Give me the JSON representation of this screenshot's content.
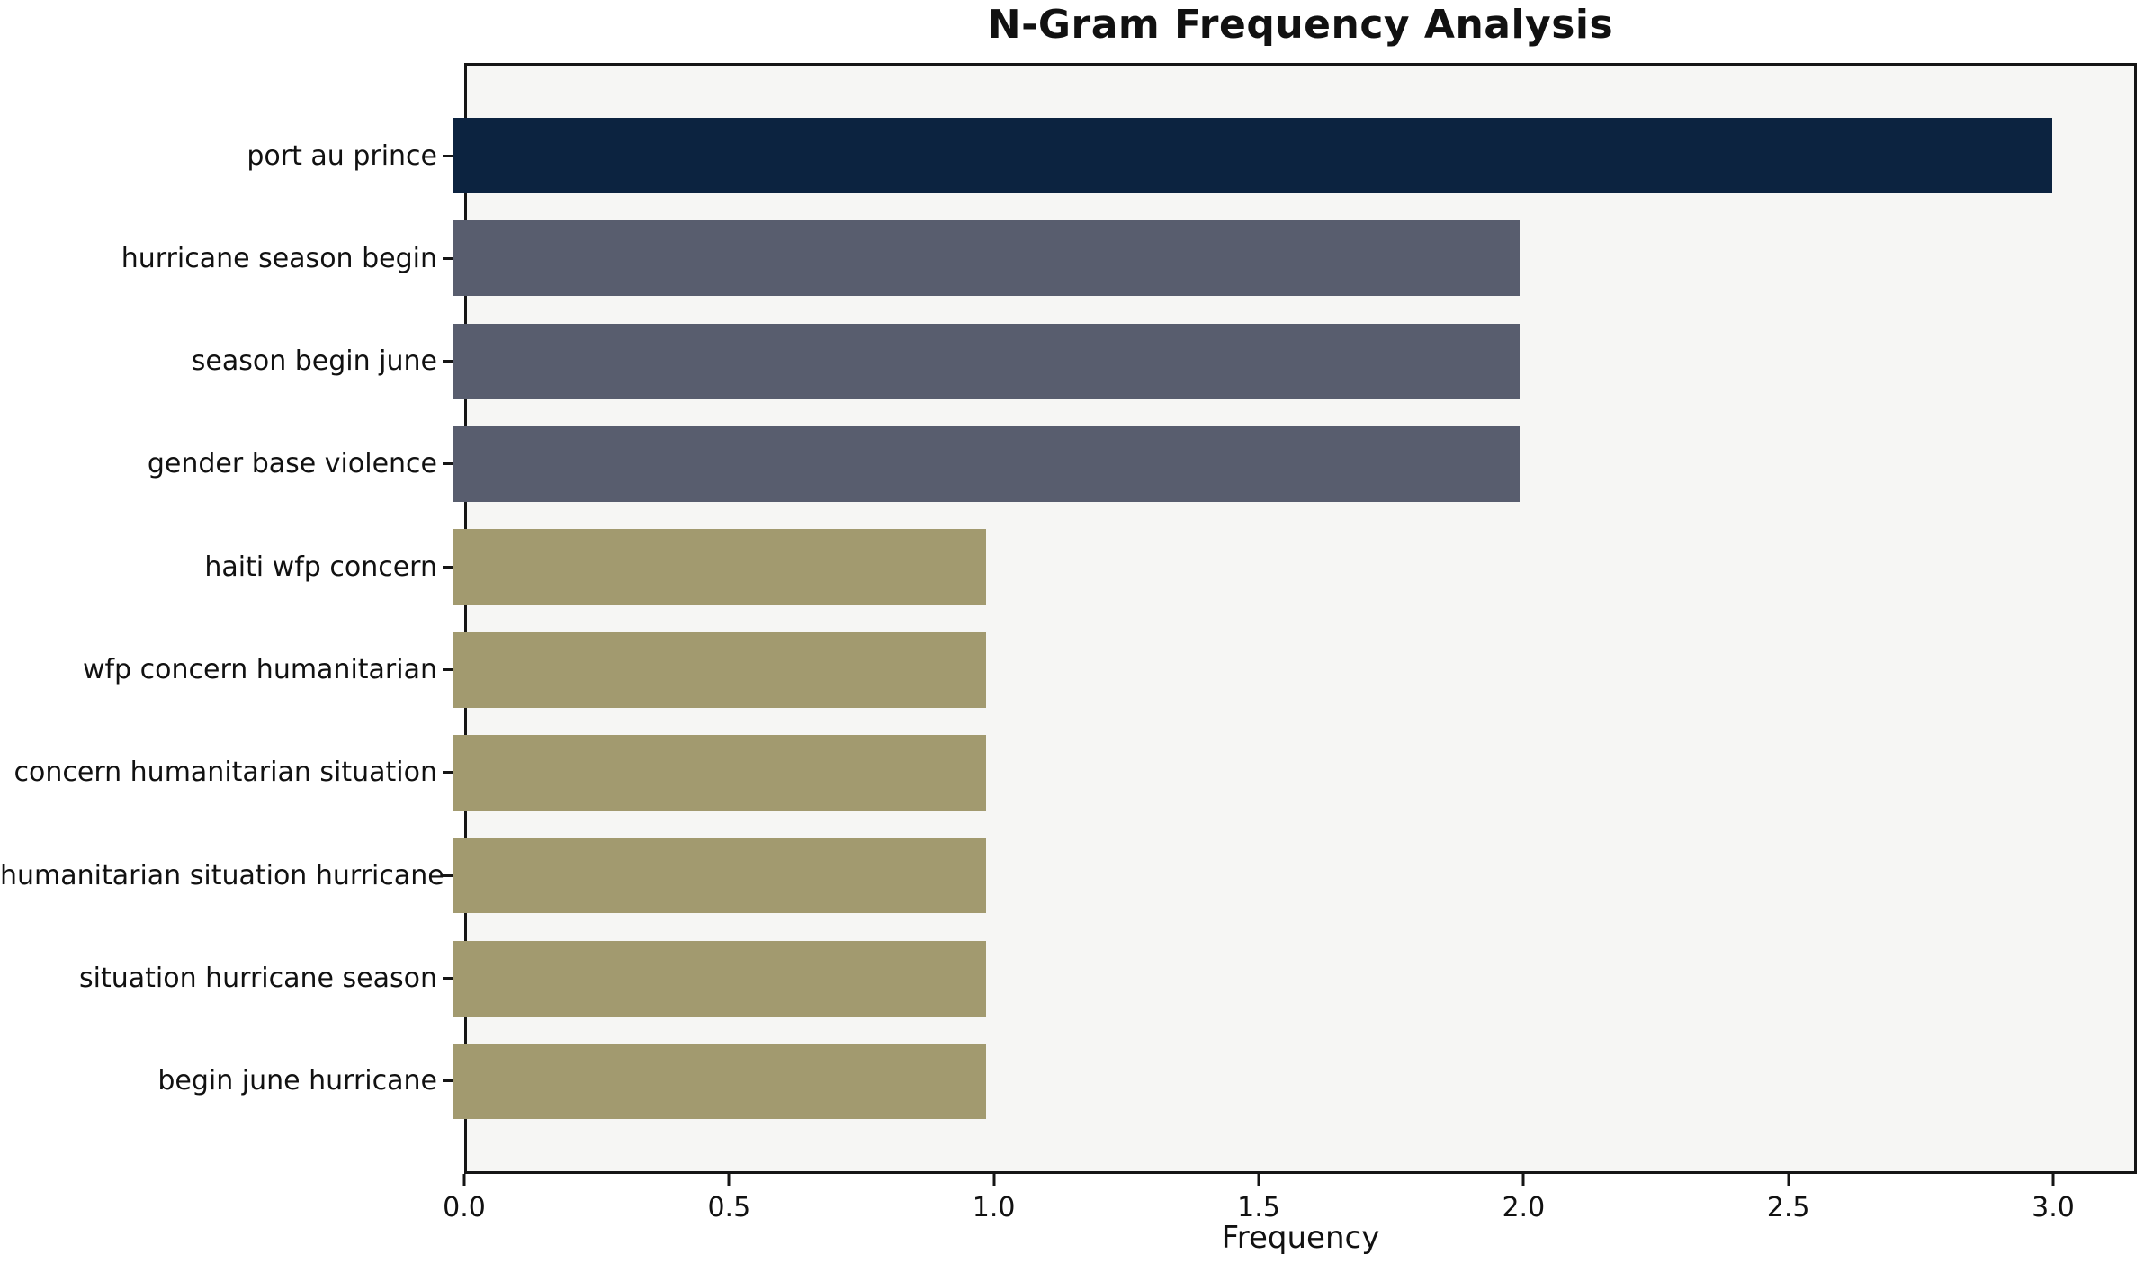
{
  "chart_data": {
    "type": "bar",
    "orientation": "horizontal",
    "title": "N-Gram Frequency Analysis",
    "xlabel": "Frequency",
    "ylabel": "",
    "categories": [
      "port au prince",
      "hurricane season begin",
      "season begin june",
      "gender base violence",
      "haiti wfp concern",
      "wfp concern humanitarian",
      "concern humanitarian situation",
      "humanitarian situation hurricane",
      "situation hurricane season",
      "begin june hurricane"
    ],
    "values": [
      3,
      2,
      2,
      2,
      1,
      1,
      1,
      1,
      1,
      1
    ],
    "bar_colors": [
      "#0c2340",
      "#585d6e",
      "#585d6e",
      "#585d6e",
      "#a29a6f",
      "#a29a6f",
      "#a29a6f",
      "#a29a6f",
      "#a29a6f",
      "#a29a6f"
    ],
    "xticks": [
      0.0,
      0.5,
      1.0,
      1.5,
      2.0,
      2.5,
      3.0
    ],
    "xtick_labels": [
      "0.0",
      "0.5",
      "1.0",
      "1.5",
      "2.0",
      "2.5",
      "3.0"
    ],
    "xlim": [
      0,
      3.158
    ],
    "grid": false,
    "legend": null,
    "plot_bg": "#f6f6f4",
    "page_bg": "#ffffff"
  }
}
